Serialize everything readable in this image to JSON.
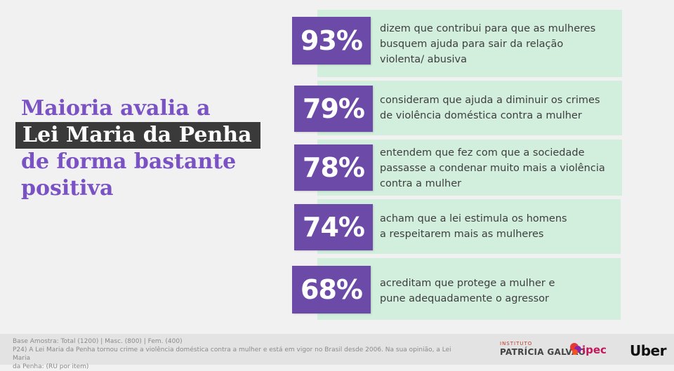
{
  "headline": {
    "line1": "Maioria avalia a",
    "line2": "Lei Maria da Penha",
    "line3": "de forma bastante",
    "line4": "positiva"
  },
  "stats": [
    {
      "value": "93%",
      "lines": [
        "dizem que contribui para que as mulheres",
        "busquem ajuda para sair da relação",
        "violenta/ abusiva"
      ]
    },
    {
      "value": "79%",
      "lines": [
        "consideram que ajuda a diminuir os crimes",
        "de violência doméstica contra a mulher"
      ]
    },
    {
      "value": "78%",
      "lines": [
        "entendem que fez com que a sociedade",
        "passasse a condenar muito mais a violência",
        "contra a mulher"
      ]
    },
    {
      "value": "74%",
      "lines": [
        "acham que a lei estimula os homens",
        "a respeitarem mais as mulheres"
      ]
    },
    {
      "value": "68%",
      "lines": [
        "acreditam que protege a mulher e",
        "pune adequadamente o agressor"
      ]
    }
  ],
  "footer": {
    "base": "Base Amostra: Total (1200) | Masc. (800) | Fem. (400)",
    "question": "P24) A Lei Maria da Penha tornou crime a violência doméstica contra a mulher e está em vigor no Brasil desde 2006. Na sua opinião, a Lei Maria",
    "question2": "da Penha: (RU por item)"
  },
  "logos": {
    "patricia_small": "INSTITUTO",
    "patricia_big": "PATRÍCIA GALVÃO",
    "ipec": "ipec",
    "uber": "Uber"
  },
  "colors": {
    "accent_purple": "#7a52c4",
    "badge_purple": "#6b4aa8",
    "card_green": "#d2eedd",
    "highlight_dark": "#3a3a3a"
  }
}
